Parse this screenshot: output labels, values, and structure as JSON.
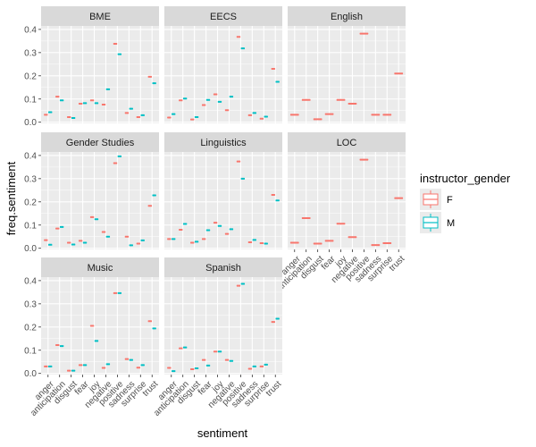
{
  "chart_data": {
    "type": "boxplot",
    "facet_layout": "wrap-3-columns",
    "xlabel": "sentiment",
    "ylabel": "freq.sentiment",
    "ylim": [
      -0.005,
      0.415
    ],
    "y_ticks": [
      0.0,
      0.1,
      0.2,
      0.3,
      0.4
    ],
    "y_tick_labels": [
      "0.0",
      "0.1",
      "0.2",
      "0.3",
      "0.4"
    ],
    "categories": [
      "anger",
      "anticipation",
      "disgust",
      "fear",
      "joy",
      "negative",
      "positive",
      "sadness",
      "surprise",
      "trust"
    ],
    "legend": {
      "title": "instructor_gender",
      "placement": "right",
      "entries": [
        {
          "name": "F",
          "color": "#F8766D"
        },
        {
          "name": "M",
          "color": "#00BFC4"
        }
      ]
    },
    "grid": true,
    "panel_background": "#EBEBEB",
    "strip_background": "#D9D9D9",
    "facets": [
      {
        "name": "BME",
        "series": [
          {
            "name": "F",
            "values": [
              0.032,
              0.11,
              0.022,
              0.08,
              0.094,
              0.076,
              0.338,
              0.04,
              0.022,
              0.196
            ]
          },
          {
            "name": "M",
            "values": [
              0.043,
              0.094,
              0.018,
              0.082,
              0.082,
              0.142,
              0.293,
              0.058,
              0.03,
              0.168
            ]
          }
        ]
      },
      {
        "name": "EECS",
        "series": [
          {
            "name": "F",
            "values": [
              0.02,
              0.094,
              0.012,
              0.074,
              0.12,
              0.052,
              0.368,
              0.03,
              0.015,
              0.23
            ]
          },
          {
            "name": "M",
            "values": [
              0.035,
              0.102,
              0.022,
              0.096,
              0.088,
              0.11,
              0.318,
              0.04,
              0.024,
              0.174
            ]
          }
        ]
      },
      {
        "name": "English",
        "series": [
          {
            "name": "F",
            "values": [
              0.032,
              0.096,
              0.013,
              0.035,
              0.096,
              0.08,
              0.382,
              0.032,
              0.032,
              0.21
            ]
          }
        ]
      },
      {
        "name": "Gender Studies",
        "series": [
          {
            "name": "F",
            "values": [
              0.035,
              0.085,
              0.024,
              0.032,
              0.134,
              0.07,
              0.367,
              0.05,
              0.02,
              0.183
            ]
          },
          {
            "name": "M",
            "values": [
              0.015,
              0.092,
              0.016,
              0.024,
              0.125,
              0.05,
              0.396,
              0.013,
              0.034,
              0.228
            ]
          }
        ]
      },
      {
        "name": "Linguistics",
        "series": [
          {
            "name": "F",
            "values": [
              0.04,
              0.08,
              0.024,
              0.04,
              0.11,
              0.062,
              0.374,
              0.026,
              0.022,
              0.23
            ]
          },
          {
            "name": "M",
            "values": [
              0.04,
              0.105,
              0.028,
              0.078,
              0.096,
              0.082,
              0.3,
              0.036,
              0.02,
              0.206
            ]
          }
        ]
      },
      {
        "name": "LOC",
        "series": [
          {
            "name": "F",
            "values": [
              0.024,
              0.13,
              0.02,
              0.032,
              0.106,
              0.048,
              0.382,
              0.014,
              0.022,
              0.216
            ]
          }
        ]
      },
      {
        "name": "Music",
        "series": [
          {
            "name": "F",
            "values": [
              0.03,
              0.122,
              0.012,
              0.036,
              0.205,
              0.024,
              0.346,
              0.062,
              0.025,
              0.225
            ]
          },
          {
            "name": "M",
            "values": [
              0.03,
              0.118,
              0.012,
              0.036,
              0.14,
              0.04,
              0.346,
              0.058,
              0.036,
              0.194
            ]
          }
        ]
      },
      {
        "name": "Spanish",
        "series": [
          {
            "name": "F",
            "values": [
              0.024,
              0.108,
              0.018,
              0.058,
              0.094,
              0.058,
              0.378,
              0.02,
              0.03,
              0.222
            ]
          },
          {
            "name": "M",
            "values": [
              0.01,
              0.112,
              0.022,
              0.034,
              0.094,
              0.054,
              0.386,
              0.03,
              0.038,
              0.236
            ]
          }
        ]
      }
    ]
  }
}
